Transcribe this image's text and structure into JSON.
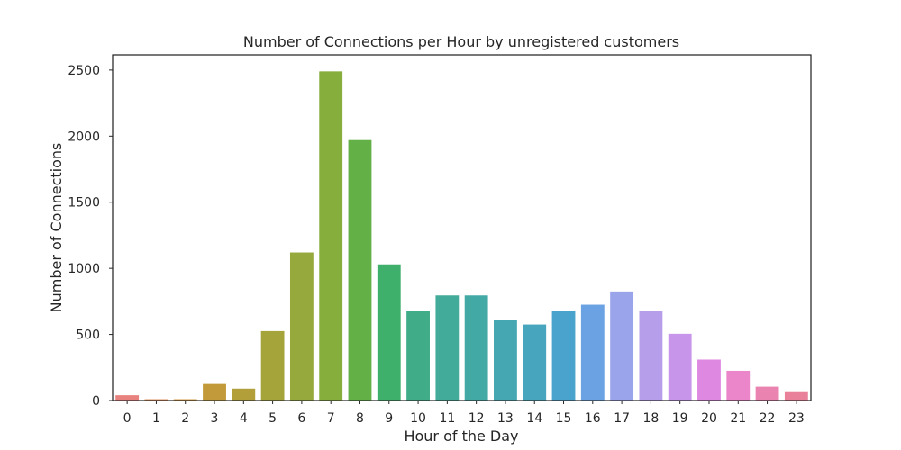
{
  "chart_data": {
    "type": "bar",
    "title": "Number of Connections per Hour by unregistered customers",
    "xlabel": "Hour of the Day",
    "ylabel": "Number of Connections",
    "categories": [
      "0",
      "1",
      "2",
      "3",
      "4",
      "5",
      "6",
      "7",
      "8",
      "9",
      "10",
      "11",
      "12",
      "13",
      "14",
      "15",
      "16",
      "17",
      "18",
      "19",
      "20",
      "21",
      "22",
      "23"
    ],
    "values": [
      40,
      10,
      10,
      125,
      90,
      525,
      1120,
      2490,
      1970,
      1030,
      680,
      795,
      795,
      610,
      575,
      680,
      725,
      825,
      680,
      505,
      310,
      225,
      105,
      70
    ],
    "colors": [
      "#e8827e",
      "#dc8a55",
      "#cf9339",
      "#c29a3a",
      "#b39f3a",
      "#a5a43b",
      "#96a93c",
      "#86ae3c",
      "#63b046",
      "#3fb06b",
      "#40ad88",
      "#42ab99",
      "#43a9a5",
      "#45a7b1",
      "#47a5bd",
      "#4aa3cc",
      "#6aa2e3",
      "#99a4eb",
      "#b69eeb",
      "#c795ea",
      "#df88e2",
      "#ea86c9",
      "#ea83b0",
      "#e9819a"
    ],
    "ylim": [
      0,
      2615
    ],
    "yticks": [
      0,
      500,
      1000,
      1500,
      2000,
      2500
    ],
    "grid": false,
    "legend": "none"
  }
}
